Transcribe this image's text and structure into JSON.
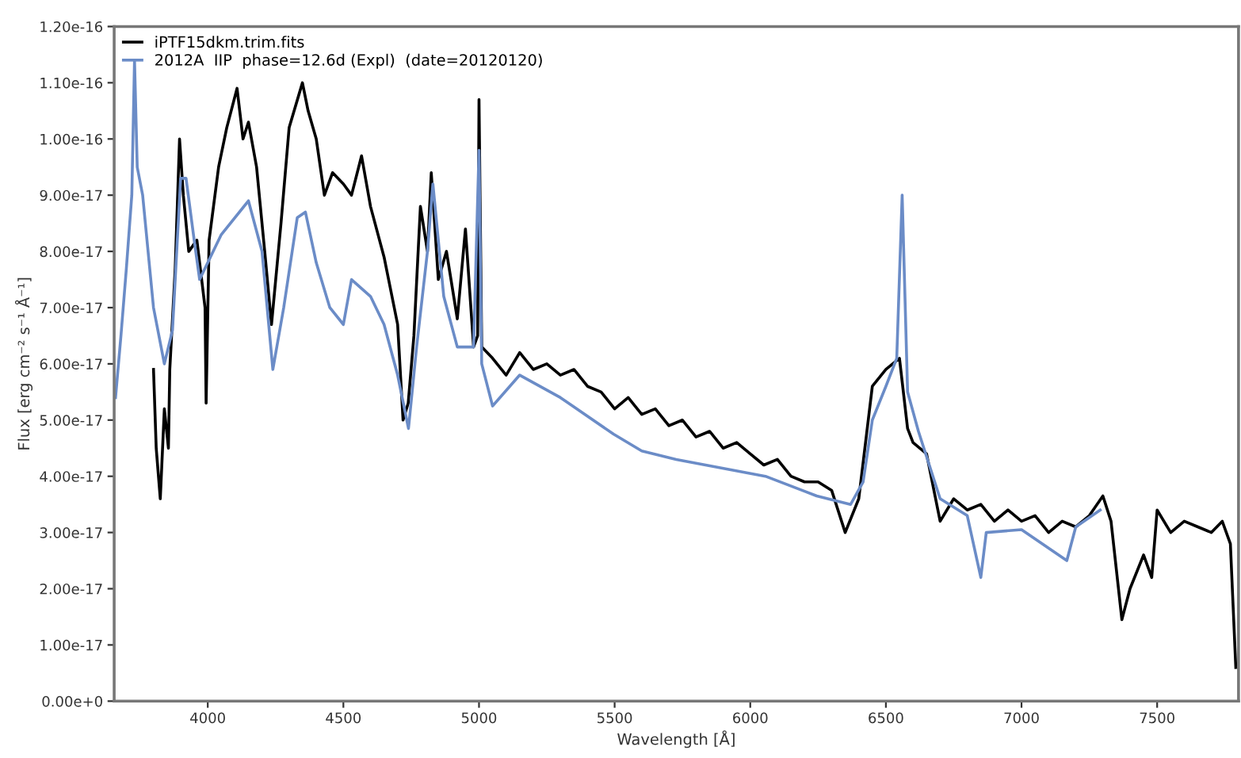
{
  "chart_data": {
    "type": "line",
    "xlabel": "Wavelength [Å]",
    "ylabel": "Flux [erg cm⁻² s⁻¹ Å⁻¹]",
    "xlim": [
      3655,
      7800
    ],
    "xticks": [
      4000,
      4500,
      5000,
      5500,
      6000,
      6500,
      7000,
      7500
    ],
    "ylim": [
      0,
      1.2e-16
    ],
    "yticks": [
      {
        "value": 0,
        "label": "0.00e+0"
      },
      {
        "value": 1e-17,
        "label": "1.00e-17"
      },
      {
        "value": 2e-17,
        "label": "2.00e-17"
      },
      {
        "value": 3e-17,
        "label": "3.00e-17"
      },
      {
        "value": 4e-17,
        "label": "4.00e-17"
      },
      {
        "value": 5e-17,
        "label": "5.00e-17"
      },
      {
        "value": 6e-17,
        "label": "6.00e-17"
      },
      {
        "value": 7e-17,
        "label": "7.00e-17"
      },
      {
        "value": 8e-17,
        "label": "8.00e-17"
      },
      {
        "value": 9e-17,
        "label": "9.00e-17"
      },
      {
        "value": 1e-16,
        "label": "1.00e-16"
      },
      {
        "value": 1.1e-16,
        "label": "1.10e-16"
      },
      {
        "value": 1.2e-16,
        "label": "1.20e-16"
      }
    ],
    "grid": false,
    "legend": "top left",
    "marker": "none",
    "line_style": "solid",
    "series": [
      {
        "name": "iPTF15dkm.trim.fits",
        "color": "#000000",
        "x": [
          3800,
          3810,
          3825,
          3840,
          3855,
          3860,
          3880,
          3896,
          3910,
          3930,
          3960,
          3990,
          3994,
          4005,
          4040,
          4070,
          4108,
          4130,
          4150,
          4180,
          4210,
          4235,
          4270,
          4300,
          4349,
          4370,
          4400,
          4430,
          4460,
          4500,
          4530,
          4567,
          4600,
          4650,
          4700,
          4720,
          4739,
          4760,
          4784,
          4810,
          4824,
          4850,
          4880,
          4920,
          4950,
          4980,
          4995,
          5000,
          5010,
          5050,
          5100,
          5150,
          5200,
          5250,
          5300,
          5350,
          5400,
          5450,
          5500,
          5550,
          5600,
          5650,
          5700,
          5750,
          5800,
          5850,
          5900,
          5950,
          6000,
          6050,
          6100,
          6150,
          6200,
          6250,
          6300,
          6350,
          6400,
          6450,
          6500,
          6550,
          6580,
          6600,
          6650,
          6700,
          6750,
          6800,
          6850,
          6900,
          6950,
          7000,
          7050,
          7100,
          7150,
          7200,
          7250,
          7300,
          7330,
          7370,
          7400,
          7450,
          7480,
          7500,
          7550,
          7600,
          7650,
          7700,
          7740,
          7770,
          7790
        ],
        "values": [
          5.9e-17,
          4.5e-17,
          3.6e-17,
          5.2e-17,
          4.5e-17,
          5.9e-17,
          7.7e-17,
          1e-16,
          9e-17,
          8e-17,
          8.2e-17,
          7e-17,
          5.3e-17,
          8.2e-17,
          9.5e-17,
          1.02e-16,
          1.09e-16,
          1e-16,
          1.03e-16,
          9.5e-17,
          8e-17,
          6.7e-17,
          8.5e-17,
          1.02e-16,
          1.1e-16,
          1.05e-16,
          1e-16,
          9e-17,
          9.4e-17,
          9.2e-17,
          9e-17,
          9.7e-17,
          8.8e-17,
          7.9e-17,
          6.7e-17,
          5e-17,
          5.3e-17,
          6.5e-17,
          8.8e-17,
          8e-17,
          9.4e-17,
          7.5e-17,
          8e-17,
          6.8e-17,
          8.4e-17,
          6.3e-17,
          6.5e-17,
          1.07e-16,
          6.3e-17,
          6.1e-17,
          5.8e-17,
          6.2e-17,
          5.9e-17,
          6e-17,
          5.8e-17,
          5.9e-17,
          5.6e-17,
          5.5e-17,
          5.2e-17,
          5.4e-17,
          5.1e-17,
          5.2e-17,
          4.9e-17,
          5e-17,
          4.7e-17,
          4.8e-17,
          4.5e-17,
          4.6e-17,
          4.4e-17,
          4.2e-17,
          4.3e-17,
          4e-17,
          3.9e-17,
          3.9e-17,
          3.75e-17,
          3e-17,
          3.6e-17,
          5.6e-17,
          5.9e-17,
          6.1e-17,
          4.85e-17,
          4.6e-17,
          4.4e-17,
          3.2e-17,
          3.6e-17,
          3.4e-17,
          3.5e-17,
          3.2e-17,
          3.4e-17,
          3.2e-17,
          3.3e-17,
          3e-17,
          3.2e-17,
          3.1e-17,
          3.3e-17,
          3.65e-17,
          3.2e-17,
          1.45e-17,
          2e-17,
          2.6e-17,
          2.2e-17,
          3.4e-17,
          3e-17,
          3.2e-17,
          3.1e-17,
          3e-17,
          3.2e-17,
          2.8e-17,
          6e-18
        ]
      },
      {
        "name": "2012A  IIP  phase=12.6d (Expl)  (date=20120120)",
        "color": "#6b8cc7",
        "x": [
          3660,
          3680,
          3700,
          3720,
          3730,
          3740,
          3760,
          3800,
          3840,
          3870,
          3900,
          3920,
          3950,
          3970,
          4050,
          4150,
          4200,
          4240,
          4280,
          4330,
          4360,
          4400,
          4450,
          4500,
          4530,
          4600,
          4650,
          4700,
          4740,
          4770,
          4810,
          4830,
          4870,
          4920,
          4980,
          5000,
          5010,
          5050,
          5150,
          5300,
          5496,
          5600,
          5727,
          6056,
          6245,
          6370,
          6416,
          6450,
          6500,
          6540,
          6560,
          6580,
          6620,
          6700,
          6800,
          6850,
          6870,
          7000,
          7167,
          7200,
          7290
        ],
        "values": [
          5.4e-17,
          6.5e-17,
          7.7e-17,
          9e-17,
          1.14e-16,
          9.5e-17,
          9e-17,
          7e-17,
          6e-17,
          6.6e-17,
          9.3e-17,
          9.3e-17,
          8.2e-17,
          7.5e-17,
          8.3e-17,
          8.9e-17,
          8e-17,
          5.9e-17,
          7e-17,
          8.6e-17,
          8.7e-17,
          7.8e-17,
          7e-17,
          6.7e-17,
          7.5e-17,
          7.2e-17,
          6.7e-17,
          5.8e-17,
          4.85e-17,
          6.3e-17,
          8e-17,
          9.2e-17,
          7.2e-17,
          6.3e-17,
          6.3e-17,
          9.8e-17,
          6e-17,
          5.25e-17,
          5.8e-17,
          5.4e-17,
          4.75e-17,
          4.45e-17,
          4.3e-17,
          4e-17,
          3.65e-17,
          3.5e-17,
          3.9e-17,
          5e-17,
          5.6e-17,
          6.1e-17,
          9e-17,
          5.5e-17,
          4.8e-17,
          3.6e-17,
          3.3e-17,
          2.2e-17,
          3e-17,
          3.05e-17,
          2.5e-17,
          3.1e-17,
          3.4e-17
        ]
      }
    ]
  }
}
